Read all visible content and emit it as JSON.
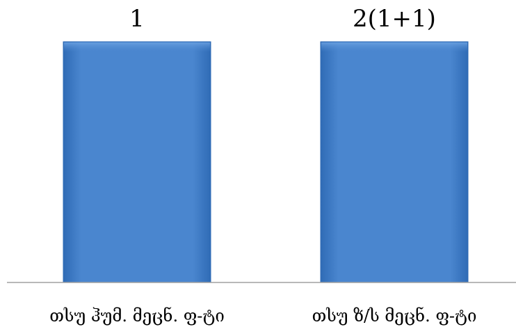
{
  "chart_data": {
    "type": "bar",
    "categories": [
      "თსუ ჰუმ. მეცნ. ფ-ტი",
      "თსუ ზ/ს მეცნ. ფ-ტი"
    ],
    "values": [
      1,
      2
    ],
    "data_labels": [
      "1",
      "2(1+1)"
    ],
    "title": "",
    "xlabel": "",
    "ylabel": "",
    "ylim": [
      0,
      2
    ],
    "grid": false,
    "legend": "none",
    "bar_color": "#4a86cf",
    "bar_color_dark": "#2f6bb5",
    "axis_color": "#a0a0a0"
  }
}
